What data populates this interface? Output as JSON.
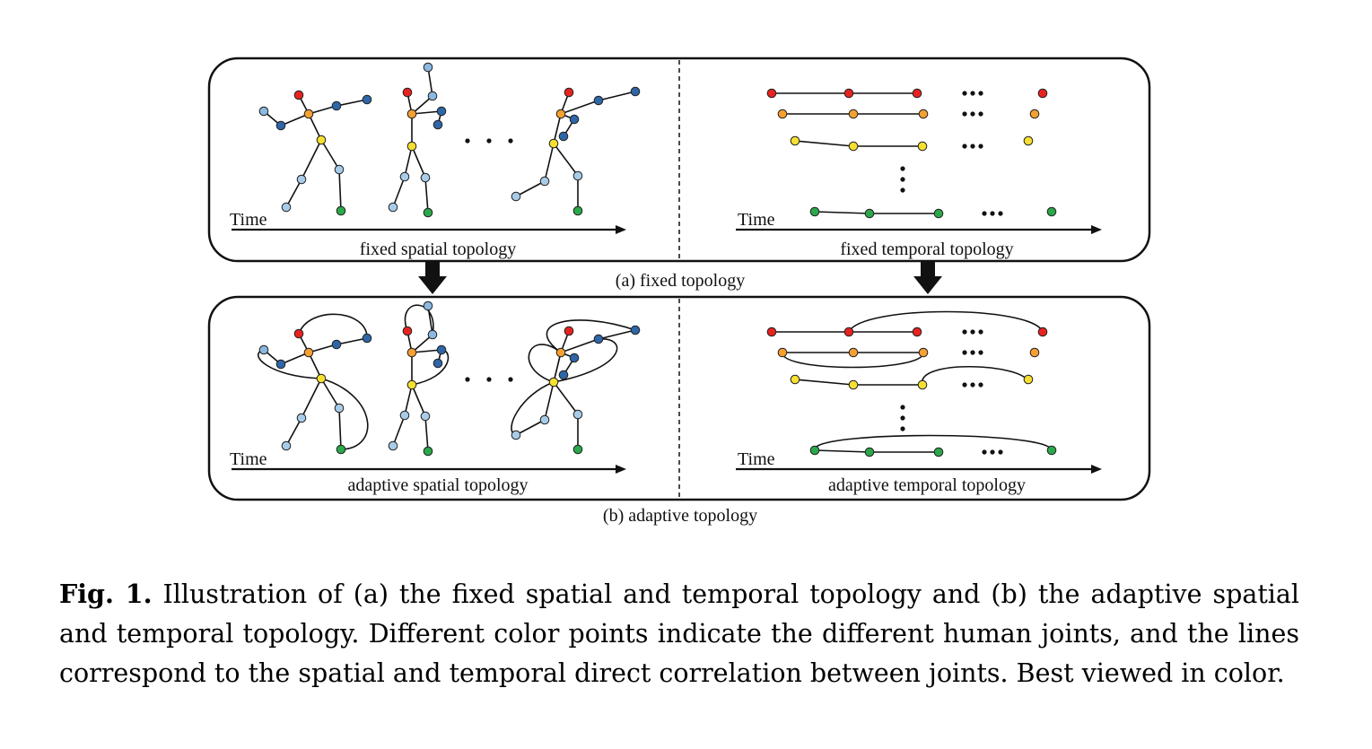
{
  "panels": {
    "fixed": {
      "spatial_label": "fixed spatial topology",
      "temporal_label": "fixed temporal topology",
      "time_label": "Time",
      "sublabel": "(a) fixed topology"
    },
    "adaptive": {
      "spatial_label": "adaptive spatial topology",
      "temporal_label": "adaptive temporal topology",
      "time_label": "Time",
      "sublabel": "(b) adaptive topology"
    }
  },
  "joint_colors": {
    "head": "#e8231f",
    "neck": "#f5a030",
    "pelvis": "#f5e030",
    "arm_light": "#8ab8e0",
    "arm_dark": "#2e66a8",
    "leg_light": "#a8cce8",
    "foot": "#2aa84a"
  },
  "caption": {
    "fig_label": "Fig. 1.",
    "text": "Illustration of (a) the fixed spatial and temporal topology and (b) the adaptive spatial and temporal topology. Different color points indicate the different human joints, and the lines correspond to the spatial and temporal direct correlation between joints. Best viewed in color."
  }
}
